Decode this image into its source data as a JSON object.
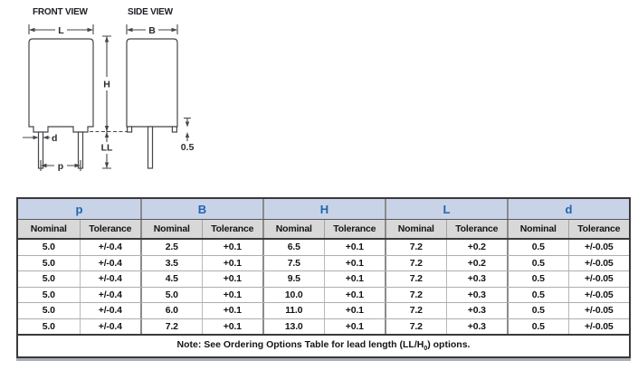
{
  "diagram": {
    "front_view_title": "FRONT VIEW",
    "side_view_title": "SIDE VIEW",
    "labels": {
      "L": "L",
      "B": "B",
      "H": "H",
      "LL": "LL",
      "d": "d",
      "p": "p",
      "standoff": "0.5"
    }
  },
  "table": {
    "groups": [
      "p",
      "B",
      "H",
      "L",
      "d"
    ],
    "subheaders": [
      "Nominal",
      "Tolerance"
    ],
    "rows": [
      [
        "5.0",
        "+/-0.4",
        "2.5",
        "+0.1",
        "6.5",
        "+0.1",
        "7.2",
        "+0.2",
        "0.5",
        "+/-0.05"
      ],
      [
        "5.0",
        "+/-0.4",
        "3.5",
        "+0.1",
        "7.5",
        "+0.1",
        "7.2",
        "+0.2",
        "0.5",
        "+/-0.05"
      ],
      [
        "5.0",
        "+/-0.4",
        "4.5",
        "+0.1",
        "9.5",
        "+0.1",
        "7.2",
        "+0.3",
        "0.5",
        "+/-0.05"
      ],
      [
        "5.0",
        "+/-0.4",
        "5.0",
        "+0.1",
        "10.0",
        "+0.1",
        "7.2",
        "+0.3",
        "0.5",
        "+/-0.05"
      ],
      [
        "5.0",
        "+/-0.4",
        "6.0",
        "+0.1",
        "11.0",
        "+0.1",
        "7.2",
        "+0.3",
        "0.5",
        "+/-0.05"
      ],
      [
        "5.0",
        "+/-0.4",
        "7.2",
        "+0.1",
        "13.0",
        "+0.1",
        "7.2",
        "+0.3",
        "0.5",
        "+/-0.05"
      ]
    ],
    "note_prefix": "Note: See Ordering Options Table for lead length (LL/H",
    "note_subscript": "0",
    "note_suffix": ") options."
  },
  "appearance": {
    "group_header_bg": "#c9d3e8",
    "group_header_text": "#2066ae",
    "subheader_bg": "#d8d8d8",
    "table_border_dark": "#3a3a3a",
    "drawing_line_color": "#46464b",
    "body_text": "#141414"
  }
}
